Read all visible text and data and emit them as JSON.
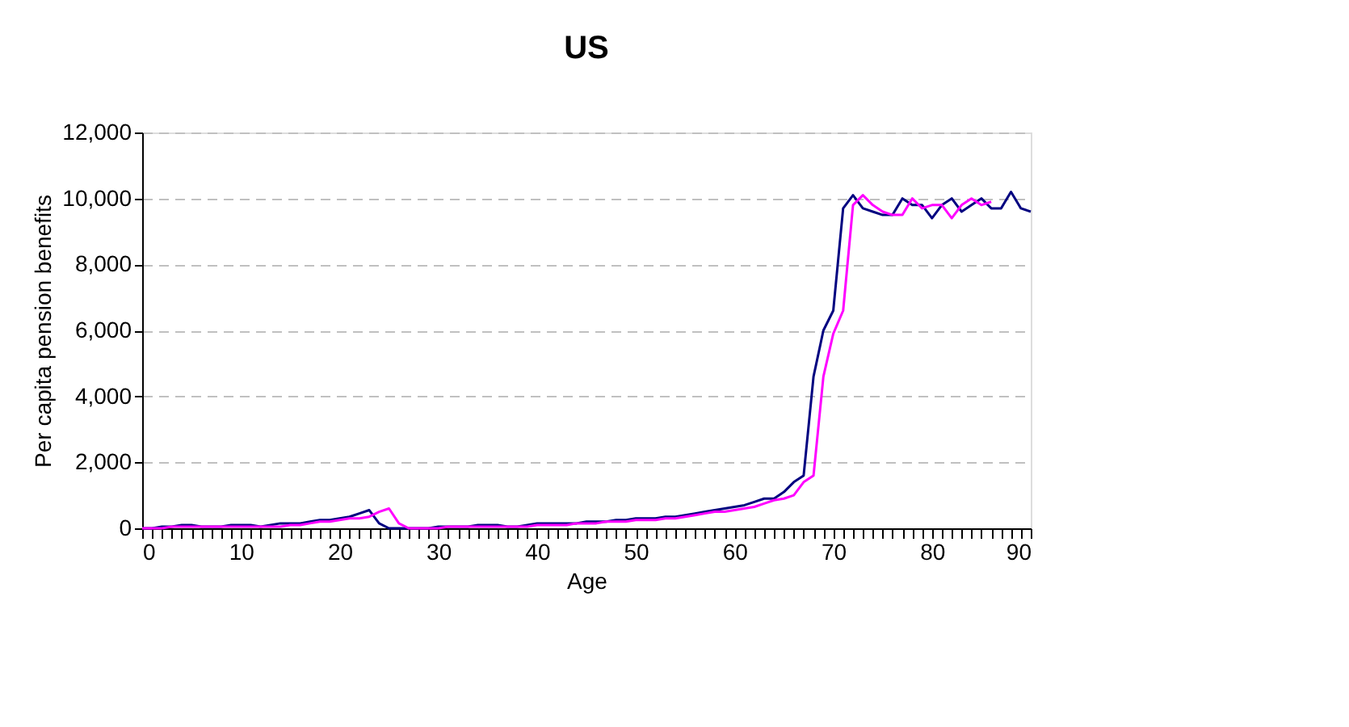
{
  "chart_data": {
    "type": "line",
    "title": "US",
    "xlabel": "Age",
    "ylabel": "Per capita pension benefits",
    "x": [
      0,
      1,
      2,
      3,
      4,
      5,
      6,
      7,
      8,
      9,
      10,
      11,
      12,
      13,
      14,
      15,
      16,
      17,
      18,
      19,
      20,
      21,
      22,
      23,
      24,
      25,
      26,
      27,
      28,
      29,
      30,
      31,
      32,
      33,
      34,
      35,
      36,
      37,
      38,
      39,
      40,
      41,
      42,
      43,
      44,
      45,
      46,
      47,
      48,
      49,
      50,
      51,
      52,
      53,
      54,
      55,
      56,
      57,
      58,
      59,
      60,
      61,
      62,
      63,
      64,
      65,
      66,
      67,
      68,
      69,
      70,
      71,
      72,
      73,
      74,
      75,
      76,
      77,
      78,
      79,
      80,
      81,
      82,
      83,
      84,
      85,
      86,
      87,
      88,
      89,
      90
    ],
    "series": [
      {
        "color": "#000080",
        "values": [
          0,
          0,
          50,
          50,
          100,
          100,
          50,
          50,
          50,
          100,
          100,
          100,
          50,
          100,
          150,
          150,
          150,
          200,
          250,
          250,
          300,
          350,
          450,
          550,
          150,
          0,
          0,
          0,
          0,
          0,
          50,
          50,
          50,
          50,
          100,
          100,
          100,
          50,
          50,
          100,
          150,
          150,
          150,
          150,
          150,
          200,
          200,
          200,
          250,
          250,
          300,
          300,
          300,
          350,
          350,
          400,
          450,
          500,
          550,
          600,
          650,
          700,
          800,
          900,
          900,
          1100,
          1400,
          1600,
          4600,
          6000,
          6600,
          9700,
          10100,
          9700,
          9600,
          9500,
          9500,
          10000,
          9800,
          9800,
          9400,
          9800,
          10000,
          9600,
          9800,
          10000,
          9700,
          9700,
          10200,
          9700,
          9600
        ]
      },
      {
        "color": "#ff00ff",
        "values": [
          0,
          0,
          0,
          50,
          50,
          50,
          50,
          50,
          50,
          50,
          50,
          50,
          50,
          50,
          50,
          100,
          100,
          150,
          200,
          200,
          250,
          300,
          300,
          350,
          500,
          600,
          150,
          0,
          0,
          0,
          0,
          50,
          50,
          50,
          50,
          50,
          50,
          50,
          50,
          50,
          100,
          100,
          100,
          100,
          150,
          150,
          150,
          200,
          200,
          200,
          250,
          250,
          250,
          300,
          300,
          350,
          400,
          450,
          500,
          500,
          550,
          600,
          650,
          750,
          850,
          900,
          1000,
          1400,
          1600,
          4600,
          5900,
          6600,
          9800,
          10100,
          9800,
          9600,
          9500,
          9500,
          10000,
          9700,
          9800,
          9800,
          9400,
          9800,
          10000,
          9800,
          9900,
          null,
          null,
          null,
          null
        ]
      }
    ],
    "xlim": [
      0,
      90
    ],
    "xticks": [
      0,
      {
        "value": 1,
        "label": null
      },
      {
        "value": 2,
        "label": null
      },
      {
        "value": 3,
        "label": null
      },
      {
        "value": 4,
        "label": null
      },
      {
        "value": 5,
        "label": null
      },
      {
        "value": 6,
        "label": null
      },
      {
        "value": 7,
        "label": null
      },
      {
        "value": 8,
        "label": null
      },
      {
        "value": 9,
        "label": null
      },
      10,
      {
        "value": 11,
        "label": null
      },
      {
        "value": 12,
        "label": null
      },
      {
        "value": 13,
        "label": null
      },
      {
        "value": 14,
        "label": null
      },
      {
        "value": 15,
        "label": null
      },
      {
        "value": 16,
        "label": null
      },
      {
        "value": 17,
        "label": null
      },
      {
        "value": 18,
        "label": null
      },
      {
        "value": 19,
        "label": null
      },
      20,
      {
        "value": 21,
        "label": null
      },
      {
        "value": 22,
        "label": null
      },
      {
        "value": 23,
        "label": null
      },
      {
        "value": 24,
        "label": null
      },
      {
        "value": 25,
        "label": null
      },
      {
        "value": 26,
        "label": null
      },
      {
        "value": 27,
        "label": null
      },
      {
        "value": 28,
        "label": null
      },
      {
        "value": 29,
        "label": null
      },
      30,
      {
        "value": 31,
        "label": null
      },
      {
        "value": 32,
        "label": null
      },
      {
        "value": 33,
        "label": null
      },
      {
        "value": 34,
        "label": null
      },
      {
        "value": 35,
        "label": null
      },
      {
        "value": 36,
        "label": null
      },
      {
        "value": 37,
        "label": null
      },
      {
        "value": 38,
        "label": null
      },
      {
        "value": 39,
        "label": null
      },
      40,
      {
        "value": 41,
        "label": null
      },
      {
        "value": 42,
        "label": null
      },
      {
        "value": 43,
        "label": null
      },
      {
        "value": 44,
        "label": null
      },
      {
        "value": 45,
        "label": null
      },
      {
        "value": 46,
        "label": null
      },
      {
        "value": 47,
        "label": null
      },
      {
        "value": 48,
        "label": null
      },
      {
        "value": 49,
        "label": null
      },
      50,
      {
        "value": 51,
        "label": null
      },
      {
        "value": 52,
        "label": null
      },
      {
        "value": 53,
        "label": null
      },
      {
        "value": 54,
        "label": null
      },
      {
        "value": 55,
        "label": null
      },
      {
        "value": 56,
        "label": null
      },
      {
        "value": 57,
        "label": null
      },
      {
        "value": 58,
        "label": null
      },
      {
        "value": 59,
        "label": null
      },
      60,
      {
        "value": 61,
        "label": null
      },
      {
        "value": 62,
        "label": null
      },
      {
        "value": 63,
        "label": null
      },
      {
        "value": 64,
        "label": null
      },
      {
        "value": 65,
        "label": null
      },
      {
        "value": 66,
        "label": null
      },
      {
        "value": 67,
        "label": null
      },
      {
        "value": 68,
        "label": null
      },
      {
        "value": 69,
        "label": null
      },
      70,
      {
        "value": 71,
        "label": null
      },
      {
        "value": 72,
        "label": null
      },
      {
        "value": 73,
        "label": null
      },
      {
        "value": 74,
        "label": null
      },
      {
        "value": 75,
        "label": null
      },
      {
        "value": 76,
        "label": null
      },
      {
        "value": 77,
        "label": null
      },
      {
        "value": 78,
        "label": null
      },
      {
        "value": 79,
        "label": null
      },
      80,
      {
        "value": 81,
        "label": null
      },
      {
        "value": 82,
        "label": null
      },
      {
        "value": 83,
        "label": null
      },
      {
        "value": 84,
        "label": null
      },
      {
        "value": 85,
        "label": null
      },
      {
        "value": 86,
        "label": null
      },
      {
        "value": 87,
        "label": null
      },
      {
        "value": 88,
        "label": null
      },
      {
        "value": 89,
        "label": null
      },
      90
    ],
    "ylim": [
      0,
      12000
    ],
    "yticks": [
      0,
      {
        "value": 2000,
        "label": "2,000"
      },
      {
        "value": 4000,
        "label": "4,000"
      },
      {
        "value": 6000,
        "label": "6,000"
      },
      {
        "value": 8000,
        "label": "8,000"
      },
      {
        "value": 10000,
        "label": "10,000"
      },
      {
        "value": 12000,
        "label": "12,000"
      }
    ],
    "grid": "y",
    "line_style": "solid",
    "marker": "none",
    "legend": false
  }
}
